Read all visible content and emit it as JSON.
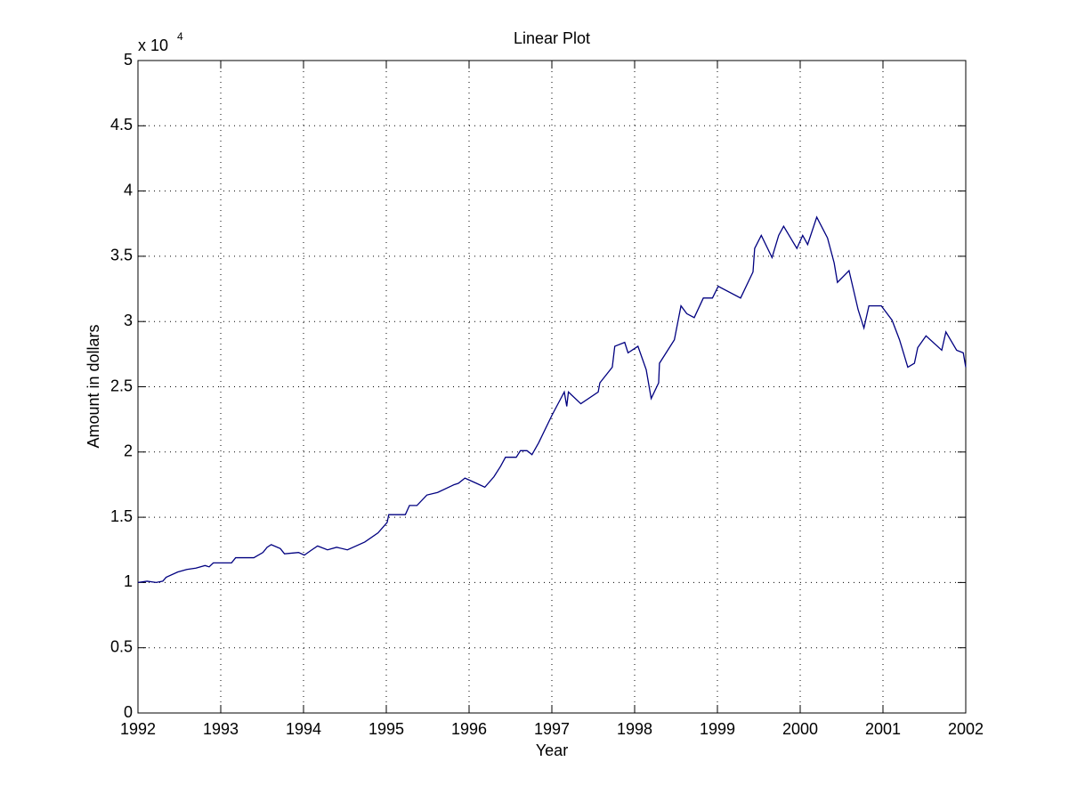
{
  "chart_data": {
    "type": "line",
    "title": "Linear Plot",
    "xlabel": "Year",
    "ylabel": "Amount in dollars",
    "scale_label": "x 10",
    "scale_exponent": "4",
    "xlim": [
      1992,
      2002
    ],
    "xticks": [
      1992,
      1993,
      1994,
      1995,
      1996,
      1997,
      1998,
      1999,
      2000,
      2001,
      2002
    ],
    "ylim": [
      0,
      5
    ],
    "yticks": [
      0,
      0.5,
      1,
      1.5,
      2,
      2.5,
      3,
      3.5,
      4,
      4.5,
      5
    ],
    "grid": true,
    "x": [
      1992.0,
      1992.11,
      1992.22,
      1992.3,
      1992.34,
      1992.48,
      1992.59,
      1992.7,
      1992.81,
      1992.86,
      1992.91,
      1993.13,
      1993.18,
      1993.4,
      1993.51,
      1993.56,
      1993.61,
      1993.72,
      1993.77,
      1993.94,
      1994.01,
      1994.1,
      1994.17,
      1994.29,
      1994.4,
      1994.53,
      1994.74,
      1994.9,
      1995.01,
      1995.03,
      1995.23,
      1995.28,
      1995.37,
      1995.49,
      1995.62,
      1995.82,
      1995.87,
      1995.95,
      1996.09,
      1996.19,
      1996.3,
      1996.38,
      1996.44,
      1996.57,
      1996.62,
      1996.7,
      1996.76,
      1996.84,
      1997.0,
      1997.15,
      1997.18,
      1997.2,
      1997.35,
      1997.56,
      1997.58,
      1997.73,
      1997.76,
      1997.88,
      1997.92,
      1998.04,
      1998.14,
      1998.2,
      1998.29,
      1998.3,
      1998.48,
      1998.56,
      1998.63,
      1998.72,
      1998.83,
      1998.94,
      1999.01,
      1999.28,
      1999.43,
      1999.45,
      1999.53,
      1999.66,
      1999.74,
      1999.8,
      1999.96,
      2000.03,
      2000.09,
      2000.2,
      2000.33,
      2000.41,
      2000.45,
      2000.59,
      2000.7,
      2000.77,
      2000.83,
      2000.98,
      2001.11,
      2001.2,
      2001.3,
      2001.38,
      2001.42,
      2001.52,
      2001.71,
      2001.76,
      2001.89,
      2001.97,
      2002.0
    ],
    "series": [
      {
        "color": "#000080",
        "values": [
          1.0,
          1.01,
          1.0,
          1.01,
          1.04,
          1.08,
          1.1,
          1.11,
          1.13,
          1.12,
          1.15,
          1.15,
          1.19,
          1.19,
          1.23,
          1.27,
          1.29,
          1.26,
          1.22,
          1.23,
          1.21,
          1.25,
          1.28,
          1.25,
          1.27,
          1.25,
          1.31,
          1.38,
          1.46,
          1.52,
          1.52,
          1.59,
          1.59,
          1.67,
          1.69,
          1.75,
          1.76,
          1.8,
          1.76,
          1.73,
          1.81,
          1.89,
          1.96,
          1.96,
          2.01,
          2.01,
          1.98,
          2.07,
          2.28,
          2.46,
          2.35,
          2.46,
          2.37,
          2.46,
          2.53,
          2.65,
          2.81,
          2.84,
          2.76,
          2.81,
          2.63,
          2.41,
          2.53,
          2.68,
          2.86,
          3.12,
          3.06,
          3.03,
          3.18,
          3.18,
          3.27,
          3.18,
          3.38,
          3.56,
          3.66,
          3.49,
          3.66,
          3.73,
          3.56,
          3.66,
          3.59,
          3.8,
          3.64,
          3.45,
          3.3,
          3.39,
          3.09,
          2.95,
          3.12,
          3.12,
          3.01,
          2.86,
          2.65,
          2.68,
          2.8,
          2.89,
          2.78,
          2.92,
          2.78,
          2.76,
          2.65
        ]
      }
    ]
  }
}
